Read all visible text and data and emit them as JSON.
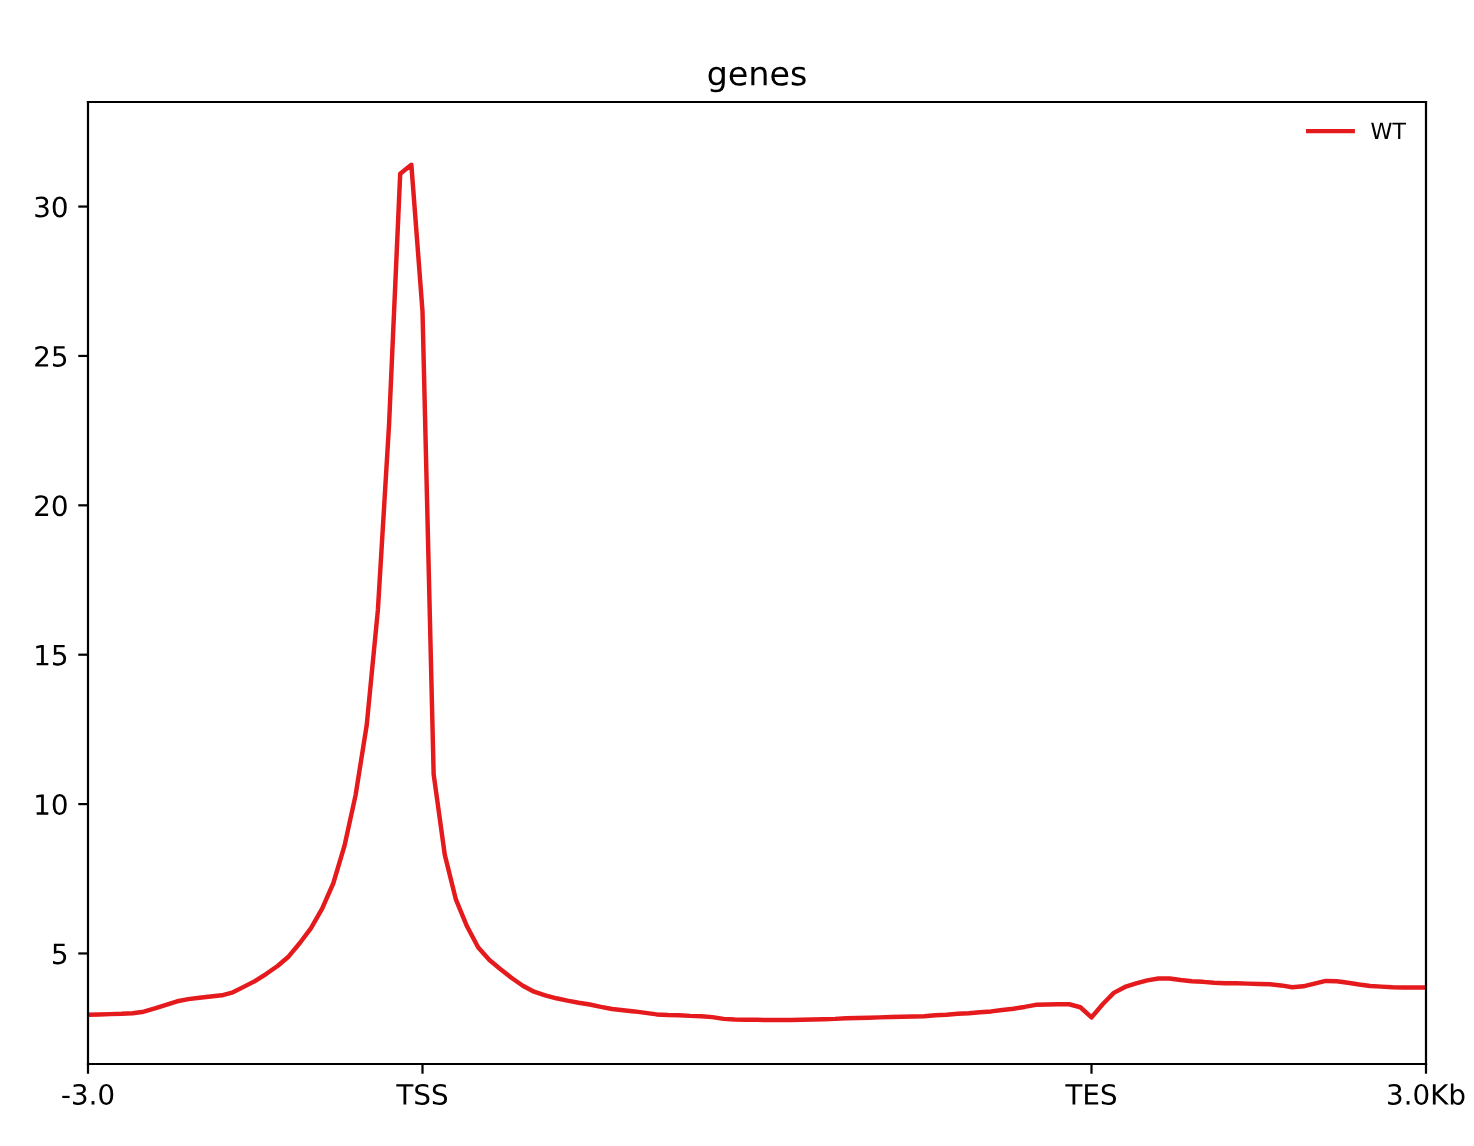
{
  "chart_data": {
    "type": "line",
    "title": "genes",
    "categories": [
      "-3.0",
      null,
      null,
      null,
      null,
      null,
      null,
      null,
      null,
      null,
      null,
      null,
      null,
      null,
      null,
      null,
      null,
      null,
      null,
      null,
      null,
      null,
      null,
      null,
      null,
      null,
      null,
      null,
      null,
      null,
      "TSS",
      null,
      null,
      null,
      null,
      null,
      null,
      null,
      null,
      null,
      null,
      null,
      null,
      null,
      null,
      null,
      null,
      null,
      null,
      null,
      null,
      null,
      null,
      null,
      null,
      null,
      null,
      null,
      null,
      null,
      null,
      null,
      null,
      null,
      null,
      null,
      null,
      null,
      null,
      null,
      null,
      null,
      null,
      null,
      null,
      null,
      null,
      null,
      null,
      null,
      null,
      null,
      null,
      null,
      null,
      null,
      null,
      null,
      null,
      null,
      "TES",
      null,
      null,
      null,
      null,
      null,
      null,
      null,
      null,
      null,
      null,
      null,
      null,
      null,
      null,
      null,
      null,
      null,
      null,
      null,
      null,
      null,
      null,
      null,
      null,
      null,
      null,
      null,
      null,
      null,
      "3.0Kb"
    ],
    "series": [
      {
        "name": "WT",
        "color": "#e41a1c",
        "values": [
          2.95,
          2.96,
          2.97,
          2.98,
          3.0,
          3.05,
          3.16,
          3.28,
          3.4,
          3.47,
          3.52,
          3.56,
          3.6,
          3.7,
          3.89,
          4.08,
          4.32,
          4.58,
          4.9,
          5.35,
          5.85,
          6.5,
          7.35,
          8.6,
          10.3,
          12.65,
          16.5,
          22.7,
          31.1,
          31.4,
          26.5,
          11.0,
          8.3,
          6.8,
          5.9,
          5.2,
          4.78,
          4.47,
          4.18,
          3.92,
          3.72,
          3.6,
          3.5,
          3.42,
          3.35,
          3.29,
          3.21,
          3.14,
          3.1,
          3.06,
          3.01,
          2.96,
          2.94,
          2.93,
          2.91,
          2.9,
          2.87,
          2.81,
          2.79,
          2.78,
          2.78,
          2.77,
          2.77,
          2.77,
          2.78,
          2.79,
          2.8,
          2.81,
          2.83,
          2.84,
          2.85,
          2.86,
          2.87,
          2.88,
          2.89,
          2.9,
          2.93,
          2.95,
          2.98,
          3.0,
          3.03,
          3.06,
          3.11,
          3.15,
          3.21,
          3.28,
          3.29,
          3.3,
          3.3,
          3.2,
          2.86,
          3.3,
          3.68,
          3.88,
          4.0,
          4.1,
          4.16,
          4.16,
          4.11,
          4.07,
          4.05,
          4.02,
          4.0,
          4.0,
          3.99,
          3.98,
          3.97,
          3.93,
          3.87,
          3.9,
          3.99,
          4.08,
          4.07,
          4.02,
          3.96,
          3.91,
          3.89,
          3.87,
          3.86,
          3.86,
          3.86
        ]
      }
    ],
    "ylim": [
      1.3,
      33.5
    ],
    "yticks": [
      5,
      10,
      15,
      20,
      25,
      30
    ],
    "legend": "top right",
    "line_style": "solid"
  }
}
